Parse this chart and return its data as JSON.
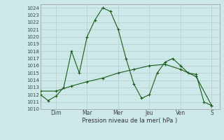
{
  "xlabel": "Pression niveau de la mer( hPa )",
  "background_color": "#cce8e8",
  "grid_color": "#b8cccc",
  "line_color": "#1a5c1a",
  "ylim": [
    1010,
    1024.5
  ],
  "yticks": [
    1010,
    1011,
    1012,
    1013,
    1014,
    1015,
    1016,
    1017,
    1018,
    1019,
    1020,
    1021,
    1022,
    1023,
    1024
  ],
  "xlim": [
    0,
    11.5
  ],
  "day_labels": [
    "Dim",
    "Mar",
    "Mer",
    "Jeu",
    "Ven",
    "S"
  ],
  "day_positions": [
    1,
    3,
    5,
    7,
    9,
    11
  ],
  "series1_x": [
    0,
    0.5,
    1,
    1.5,
    2,
    2.5,
    3,
    3.5,
    4,
    4.5,
    5,
    5.5,
    6,
    6.5,
    7,
    7.5,
    8,
    8.5,
    9,
    9.5,
    10,
    10.5,
    11
  ],
  "series1_y": [
    1012.0,
    1011.2,
    1011.8,
    1013.0,
    1018.0,
    1015.0,
    1020.0,
    1022.3,
    1024.0,
    1023.5,
    1021.0,
    1017.0,
    1013.5,
    1011.5,
    1012.0,
    1015.0,
    1016.5,
    1017.0,
    1016.0,
    1015.0,
    1014.8,
    1011.0,
    1010.5
  ],
  "series2_x": [
    0,
    1,
    2,
    3,
    4,
    5,
    6,
    7,
    8,
    9,
    10,
    11
  ],
  "series2_y": [
    1012.5,
    1012.5,
    1013.2,
    1013.8,
    1014.3,
    1015.0,
    1015.5,
    1016.0,
    1016.2,
    1015.5,
    1014.5,
    1010.5
  ]
}
